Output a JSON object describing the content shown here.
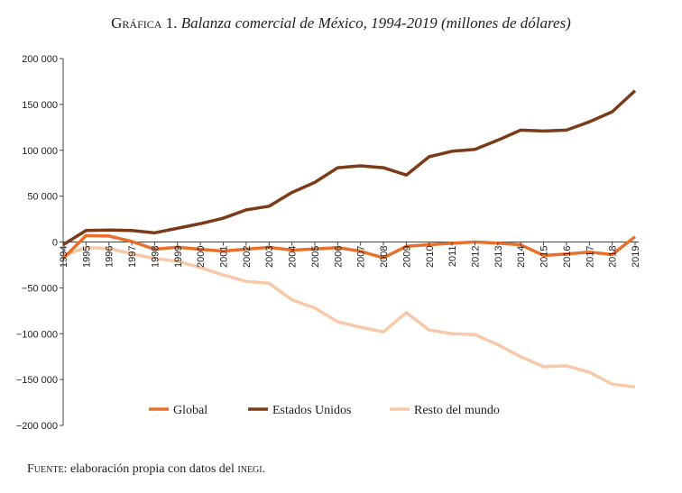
{
  "title": {
    "prefix": "Gráfica 1.",
    "text": "Balanza comercial de México, 1994-2019 (millones de dólares)"
  },
  "footer": {
    "prefix": "Fuente:",
    "text": "elaboración propia con datos del",
    "source": "inegi."
  },
  "chart_data": {
    "type": "line",
    "title": "Gráfica 1. Balanza comercial de México, 1994-2019 (millones de dólares)",
    "x": [
      1994,
      1995,
      1996,
      1997,
      1998,
      1999,
      2000,
      2001,
      2002,
      2003,
      2004,
      2005,
      2006,
      2007,
      2008,
      2009,
      2010,
      2011,
      2012,
      2013,
      2014,
      2015,
      2016,
      2017,
      2018,
      2019
    ],
    "ylim": [
      -200000,
      200000
    ],
    "yticks": [
      200000,
      150000,
      100000,
      50000,
      0,
      -50000,
      -100000,
      -150000,
      -200000
    ],
    "ytick_labels": [
      "200 000",
      "150 000",
      "100 000",
      "50 000",
      "0",
      "−50 000",
      "−100 000",
      "−150 000",
      "−200 000"
    ],
    "grid": false,
    "legend": "bottom",
    "series": [
      {
        "name": "Global",
        "color": "#e8702a",
        "values": [
          -18000,
          7000,
          6500,
          600,
          -7900,
          -5600,
          -8000,
          -9900,
          -7900,
          -5800,
          -8800,
          -7600,
          -6100,
          -10100,
          -17300,
          -4700,
          -3000,
          -1400,
          0,
          -1200,
          -3100,
          -14600,
          -13100,
          -11000,
          -13700,
          5800
        ]
      },
      {
        "name": "Estados Unidos",
        "color": "#7b3a18",
        "values": [
          -3000,
          12500,
          13000,
          12500,
          10000,
          15000,
          20000,
          26000,
          35000,
          39000,
          54000,
          65000,
          81000,
          83000,
          81000,
          73000,
          93000,
          99000,
          101000,
          111000,
          122000,
          121000,
          122000,
          131000,
          142000,
          165000
        ]
      },
      {
        "name": "Resto del mundo",
        "color": "#f8c9a8",
        "values": [
          -15000,
          -6000,
          -7000,
          -13000,
          -18000,
          -21000,
          -28000,
          -36000,
          -43000,
          -45000,
          -63000,
          -72000,
          -87000,
          -93000,
          -98000,
          -77000,
          -96000,
          -100000,
          -101000,
          -112000,
          -125000,
          -136000,
          -135000,
          -142000,
          -155000,
          -158000
        ]
      }
    ]
  }
}
